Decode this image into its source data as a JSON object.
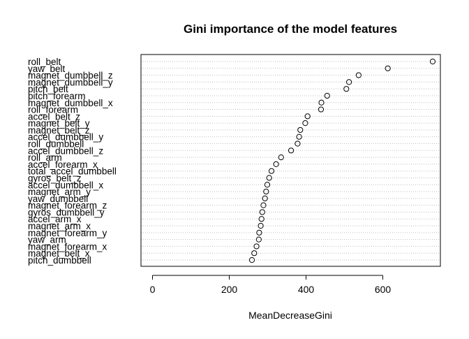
{
  "chart_data": {
    "type": "scatter",
    "subtype": "dotchart",
    "title": "Gini importance of the model features",
    "xlabel": "MeanDecreaseGini",
    "ylabel": "",
    "xlim": [
      -30,
      750
    ],
    "xticks": [
      0,
      200,
      400,
      600
    ],
    "xtick_labels": [
      "0",
      "200",
      "400",
      "600"
    ],
    "grid": "dotted horizontal lines per category",
    "marker": "open circle",
    "categories": [
      "roll_belt",
      "yaw_belt",
      "magnet_dumbbell_z",
      "magnet_dumbbell_y",
      "pitch_belt",
      "pitch_forearm",
      "magnet_dumbbell_x",
      "roll_forearm",
      "accel_belt_z",
      "magnet_belt_y",
      "magnet_belt_z",
      "accel_dumbbell_y",
      "roll_dumbbell",
      "accel_dumbbell_z",
      "roll_arm",
      "accel_forearm_x",
      "total_accel_dumbbell",
      "gyros_belt_z",
      "accel_dumbbell_x",
      "magnet_arm_y",
      "yaw_dumbbell",
      "magnet_forearm_z",
      "gyros_dumbbell_y",
      "accel_arm_x",
      "magnet_arm_x",
      "magnet_forearm_y",
      "yaw_arm",
      "magnet_forearm_x",
      "magnet_belt_x",
      "pitch_dumbbell"
    ],
    "values": [
      730,
      613,
      537,
      512,
      505,
      455,
      440,
      439,
      404,
      398,
      385,
      382,
      378,
      361,
      335,
      322,
      310,
      304,
      299,
      296,
      293,
      289,
      286,
      284,
      282,
      278,
      277,
      271,
      265,
      259
    ]
  }
}
